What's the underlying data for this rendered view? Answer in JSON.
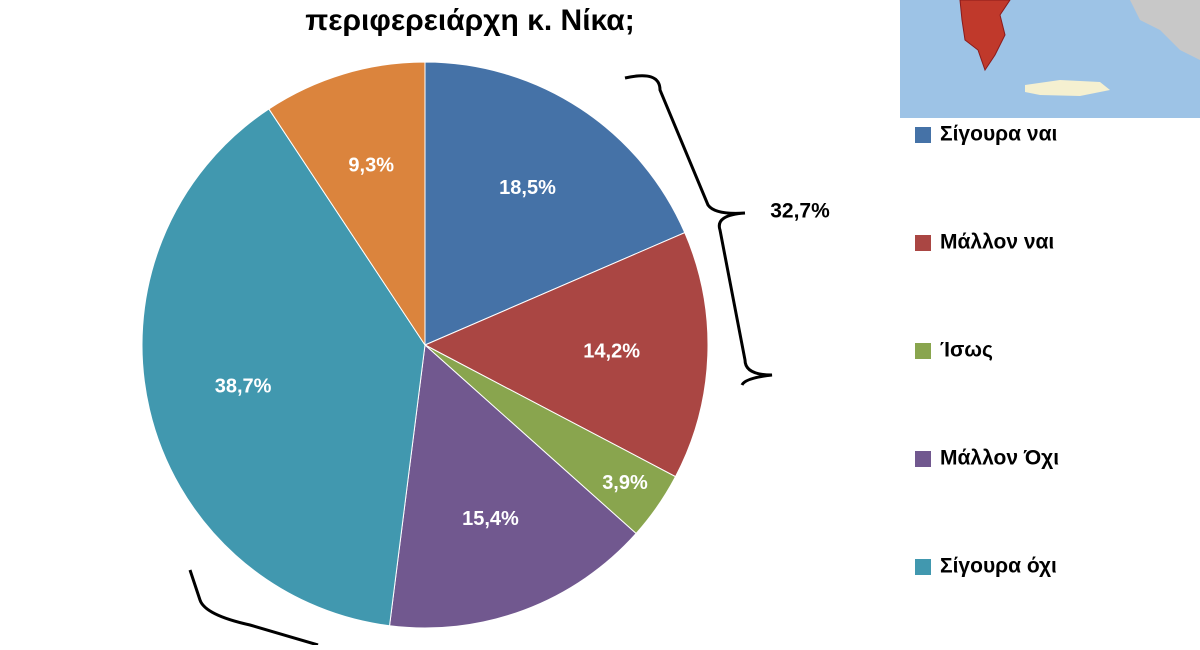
{
  "chart_data": {
    "type": "pie",
    "title": "περιφερειάρχη κ. Νίκα;",
    "categories": [
      "Σίγουρα ναι",
      "Μάλλον ναι",
      "Ίσως",
      "Μάλλον Όχι",
      "Σίγουρα όχι",
      null
    ],
    "values": [
      18.5,
      14.2,
      3.9,
      15.4,
      38.7,
      9.3
    ],
    "value_labels": [
      "18,5%",
      "14,2%",
      "3,9%",
      "15,4%",
      "38,7%",
      "9,3%"
    ],
    "colors": [
      "#4572a7",
      "#aa4643",
      "#89a54e",
      "#71588f",
      "#4198af",
      "#db843d"
    ],
    "annotations": [
      "32,7%"
    ],
    "legend": "right"
  }
}
